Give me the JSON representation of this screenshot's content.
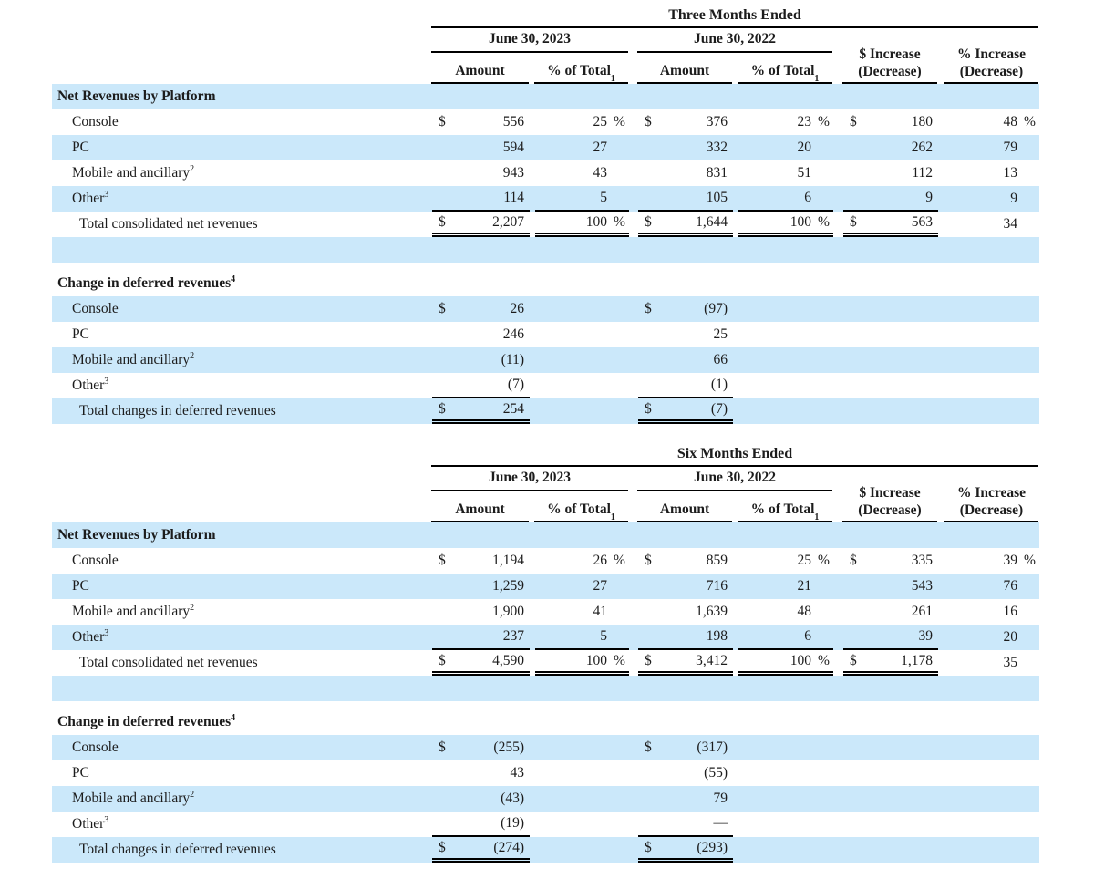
{
  "page": {
    "background": "#ffffff",
    "band_blue": "#cbe8fa",
    "text_color": "#1c1c1c",
    "rule_color": "#000000"
  },
  "header_labels": {
    "amount": "Amount",
    "pct_of_total": "% of Total",
    "pct_of_total_sup": "1",
    "dollar_increase_line1": "$ Increase",
    "dollar_increase_line2": "(Decrease)",
    "pct_increase_line1": "% Increase",
    "pct_increase_line2": "(Decrease)"
  },
  "tables": [
    {
      "period_title": "Three Months Ended",
      "date_left": "June 30, 2023",
      "date_right": "June 30, 2022",
      "rows": [
        {
          "type": "section",
          "bg": "blue",
          "label": "Net Revenues by Platform",
          "sup": ""
        },
        {
          "type": "item",
          "bg": "white",
          "label": "Console",
          "sup": "",
          "cells": [
            {
              "d": "$",
              "v": "556"
            },
            {
              "v": "25",
              "s": "%"
            },
            {
              "d": "$",
              "v": "376"
            },
            {
              "v": "23",
              "s": "%"
            },
            {
              "d": "$",
              "v": "180"
            },
            {
              "v": "48",
              "s": "%"
            }
          ]
        },
        {
          "type": "item",
          "bg": "blue",
          "label": "PC",
          "sup": "",
          "cells": [
            {
              "v": "594"
            },
            {
              "v": "27"
            },
            {
              "v": "332"
            },
            {
              "v": "20"
            },
            {
              "v": "262"
            },
            {
              "v": "79"
            }
          ]
        },
        {
          "type": "item",
          "bg": "white",
          "label": "Mobile and ancillary",
          "sup": "2",
          "cells": [
            {
              "v": "943"
            },
            {
              "v": "43"
            },
            {
              "v": "831"
            },
            {
              "v": "51"
            },
            {
              "v": "112"
            },
            {
              "v": "13"
            }
          ]
        },
        {
          "type": "item",
          "bg": "blue",
          "label": "Other",
          "sup": "3",
          "cells": [
            {
              "v": "114",
              "u": 1
            },
            {
              "v": "5",
              "u": 1
            },
            {
              "v": "105",
              "u": 1
            },
            {
              "v": "6",
              "u": 1
            },
            {
              "v": "9",
              "u": 1
            },
            {
              "v": "9"
            }
          ]
        },
        {
          "type": "total",
          "bg": "white",
          "label": "Total consolidated net revenues",
          "sup": "",
          "cells": [
            {
              "d": "$",
              "v": "2,207",
              "u": 2
            },
            {
              "v": "100",
              "s": "%",
              "u": 2
            },
            {
              "d": "$",
              "v": "1,644",
              "u": 2
            },
            {
              "v": "100",
              "s": "%",
              "u": 2
            },
            {
              "d": "$",
              "v": "563",
              "u": 2
            },
            {
              "v": "34"
            }
          ]
        },
        {
          "type": "blank",
          "bg": "blue"
        },
        {
          "type": "spacer"
        },
        {
          "type": "section",
          "bg": "white",
          "label": "Change in deferred revenues",
          "sup": "4"
        },
        {
          "type": "item",
          "bg": "blue",
          "label": "Console",
          "sup": "",
          "cells": [
            {
              "d": "$",
              "v": "26"
            },
            null,
            {
              "d": "$",
              "v": "(97)"
            },
            null,
            null,
            null
          ]
        },
        {
          "type": "item",
          "bg": "white",
          "label": "PC",
          "sup": "",
          "cells": [
            {
              "v": "246"
            },
            null,
            {
              "v": "25"
            },
            null,
            null,
            null
          ]
        },
        {
          "type": "item",
          "bg": "blue",
          "label": "Mobile and ancillary",
          "sup": "2",
          "cells": [
            {
              "v": "(11)"
            },
            null,
            {
              "v": "66"
            },
            null,
            null,
            null
          ]
        },
        {
          "type": "item",
          "bg": "white",
          "label": "Other",
          "sup": "3",
          "cells": [
            {
              "v": "(7)",
              "u": 1
            },
            null,
            {
              "v": "(1)",
              "u": 1
            },
            null,
            null,
            null
          ]
        },
        {
          "type": "total",
          "bg": "blue",
          "label": "Total changes in deferred revenues",
          "sup": "",
          "cells": [
            {
              "d": "$",
              "v": "254",
              "u": 2
            },
            null,
            {
              "d": "$",
              "v": "(7)",
              "u": 2
            },
            null,
            null,
            null
          ]
        }
      ]
    },
    {
      "period_title": "Six Months Ended",
      "date_left": "June 30, 2023",
      "date_right": "June 30, 2022",
      "rows": [
        {
          "type": "section",
          "bg": "blue",
          "label": "Net Revenues by Platform",
          "sup": ""
        },
        {
          "type": "item",
          "bg": "white",
          "label": "Console",
          "sup": "",
          "cells": [
            {
              "d": "$",
              "v": "1,194"
            },
            {
              "v": "26",
              "s": "%"
            },
            {
              "d": "$",
              "v": "859"
            },
            {
              "v": "25",
              "s": "%"
            },
            {
              "d": "$",
              "v": "335"
            },
            {
              "v": "39",
              "s": "%"
            }
          ]
        },
        {
          "type": "item",
          "bg": "blue",
          "label": "PC",
          "sup": "",
          "cells": [
            {
              "v": "1,259"
            },
            {
              "v": "27"
            },
            {
              "v": "716"
            },
            {
              "v": "21"
            },
            {
              "v": "543"
            },
            {
              "v": "76"
            }
          ]
        },
        {
          "type": "item",
          "bg": "white",
          "label": "Mobile and ancillary",
          "sup": "2",
          "cells": [
            {
              "v": "1,900"
            },
            {
              "v": "41"
            },
            {
              "v": "1,639"
            },
            {
              "v": "48"
            },
            {
              "v": "261"
            },
            {
              "v": "16"
            }
          ]
        },
        {
          "type": "item",
          "bg": "blue",
          "label": "Other",
          "sup": "3",
          "cells": [
            {
              "v": "237",
              "u": 1
            },
            {
              "v": "5",
              "u": 1
            },
            {
              "v": "198",
              "u": 1
            },
            {
              "v": "6",
              "u": 1
            },
            {
              "v": "39",
              "u": 1
            },
            {
              "v": "20"
            }
          ]
        },
        {
          "type": "total",
          "bg": "white",
          "label": "Total consolidated net revenues",
          "sup": "",
          "cells": [
            {
              "d": "$",
              "v": "4,590",
              "u": 2
            },
            {
              "v": "100",
              "s": "%",
              "u": 2
            },
            {
              "d": "$",
              "v": "3,412",
              "u": 2
            },
            {
              "v": "100",
              "s": "%",
              "u": 2
            },
            {
              "d": "$",
              "v": "1,178",
              "u": 2
            },
            {
              "v": "35"
            }
          ]
        },
        {
          "type": "blank",
          "bg": "blue"
        },
        {
          "type": "spacer"
        },
        {
          "type": "section",
          "bg": "white",
          "label": "Change in deferred revenues",
          "sup": "4"
        },
        {
          "type": "item",
          "bg": "blue",
          "label": "Console",
          "sup": "",
          "cells": [
            {
              "d": "$",
              "v": "(255)"
            },
            null,
            {
              "d": "$",
              "v": "(317)"
            },
            null,
            null,
            null
          ]
        },
        {
          "type": "item",
          "bg": "white",
          "label": "PC",
          "sup": "",
          "cells": [
            {
              "v": "43"
            },
            null,
            {
              "v": "(55)"
            },
            null,
            null,
            null
          ]
        },
        {
          "type": "item",
          "bg": "blue",
          "label": "Mobile and ancillary",
          "sup": "2",
          "cells": [
            {
              "v": "(43)"
            },
            null,
            {
              "v": "79"
            },
            null,
            null,
            null
          ]
        },
        {
          "type": "item",
          "bg": "white",
          "label": "Other",
          "sup": "3",
          "cells": [
            {
              "v": "(19)",
              "u": 1
            },
            null,
            {
              "v": "—",
              "u": 1
            },
            null,
            null,
            null
          ]
        },
        {
          "type": "total",
          "bg": "blue",
          "label": "Total changes in deferred revenues",
          "sup": "",
          "cells": [
            {
              "d": "$",
              "v": "(274)",
              "u": 2
            },
            null,
            {
              "d": "$",
              "v": "(293)",
              "u": 2
            },
            null,
            null,
            null
          ]
        }
      ]
    }
  ]
}
